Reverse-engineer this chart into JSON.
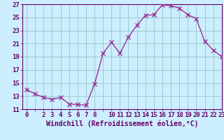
{
  "x": [
    0,
    1,
    2,
    3,
    4,
    5,
    6,
    7,
    8,
    9,
    10,
    11,
    12,
    13,
    14,
    15,
    16,
    17,
    18,
    19,
    20,
    21,
    22,
    23
  ],
  "y": [
    14.0,
    13.3,
    12.8,
    12.5,
    12.8,
    11.8,
    11.7,
    11.6,
    14.8,
    19.5,
    21.2,
    19.5,
    22.0,
    23.8,
    25.3,
    25.4,
    26.9,
    26.8,
    26.4,
    25.4,
    24.8,
    21.3,
    20.0,
    19.0
  ],
  "line_color": "#993399",
  "marker": "x",
  "marker_size": 4,
  "marker_linewidth": 1.0,
  "line_width": 1.0,
  "bg_color": "#cceeff",
  "grid_color": "#99cccc",
  "xlabel": "Windchill (Refroidissement éolien,°C)",
  "ylim": [
    11,
    27
  ],
  "xlim": [
    -0.5,
    23
  ],
  "yticks": [
    11,
    13,
    15,
    17,
    19,
    21,
    23,
    25,
    27
  ],
  "xticks": [
    0,
    2,
    3,
    4,
    5,
    6,
    7,
    8,
    10,
    11,
    12,
    13,
    14,
    15,
    16,
    17,
    18,
    19,
    20,
    21,
    22,
    23
  ],
  "all_xticks": [
    0,
    1,
    2,
    3,
    4,
    5,
    6,
    7,
    8,
    9,
    10,
    11,
    12,
    13,
    14,
    15,
    16,
    17,
    18,
    19,
    20,
    21,
    22,
    23
  ],
  "font_color": "#660066",
  "axis_label_fontsize": 7.0,
  "tick_fontsize": 6.5
}
